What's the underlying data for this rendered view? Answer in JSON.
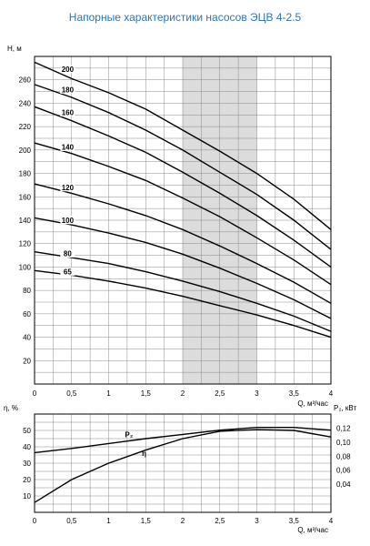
{
  "title": "Напорные характеристики насосов ЭЦВ 4-2.5",
  "chart_data": [
    {
      "type": "line",
      "ylabel": "H, м",
      "xlabel": "Q, м³/час",
      "xlim": [
        0,
        4
      ],
      "ylim": [
        0,
        280
      ],
      "x_ticks": [
        "0",
        "0,5",
        "1",
        "1,5",
        "2",
        "2,5",
        "3",
        "3,5",
        "4"
      ],
      "y_ticks": [
        "20",
        "40",
        "60",
        "80",
        "100",
        "120",
        "140",
        "160",
        "180",
        "200",
        "220",
        "240",
        "260"
      ],
      "grid": true,
      "working_range_q": [
        2,
        3
      ],
      "series": [
        {
          "name": "200",
          "x": [
            0,
            0.5,
            1,
            1.5,
            2,
            2.5,
            3,
            3.5,
            4
          ],
          "y": [
            275,
            261,
            249,
            235,
            217,
            199,
            180,
            158,
            132
          ]
        },
        {
          "name": "180",
          "x": [
            0,
            0.5,
            1,
            1.5,
            2,
            2.5,
            3,
            3.5,
            4
          ],
          "y": [
            256,
            245,
            232,
            217,
            200,
            181,
            162,
            140,
            115
          ]
        },
        {
          "name": "160",
          "x": [
            0,
            0.5,
            1,
            1.5,
            2,
            2.5,
            3,
            3.5,
            4
          ],
          "y": [
            237,
            225,
            212,
            198,
            181,
            163,
            144,
            123,
            100
          ]
        },
        {
          "name": "140",
          "x": [
            0,
            0.5,
            1,
            1.5,
            2,
            2.5,
            3,
            3.5,
            4
          ],
          "y": [
            206,
            197,
            186,
            174,
            159,
            143,
            125,
            106,
            85
          ]
        },
        {
          "name": "120",
          "x": [
            0,
            0.5,
            1,
            1.5,
            2,
            2.5,
            3,
            3.5,
            4
          ],
          "y": [
            171,
            163,
            154,
            144,
            132,
            118,
            103,
            87,
            69
          ]
        },
        {
          "name": "100",
          "x": [
            0,
            0.5,
            1,
            1.5,
            2,
            2.5,
            3,
            3.5,
            4
          ],
          "y": [
            142,
            136,
            129,
            121,
            111,
            99,
            86,
            72,
            56
          ]
        },
        {
          "name": "80",
          "x": [
            0,
            0.5,
            1,
            1.5,
            2,
            2.5,
            3,
            3.5,
            4
          ],
          "y": [
            113,
            108,
            103,
            96,
            88,
            79,
            69,
            58,
            45
          ]
        },
        {
          "name": "65",
          "x": [
            0,
            0.5,
            1,
            1.5,
            2,
            2.5,
            3,
            3.5,
            4
          ],
          "y": [
            97,
            93,
            88,
            82,
            75,
            67,
            59,
            50,
            40
          ]
        }
      ]
    },
    {
      "type": "line",
      "ylabel": "η, %",
      "ylabel2": "P₂, кВт",
      "xlabel": "Q, м³/час",
      "xlim": [
        0,
        4
      ],
      "ylim": [
        0,
        60
      ],
      "ylim2": [
        0,
        0.14
      ],
      "x_ticks": [
        "0",
        "0,5",
        "1",
        "1,5",
        "2",
        "2,5",
        "3",
        "3,5",
        "4"
      ],
      "y_ticks": [
        "10",
        "20",
        "30",
        "40",
        "50"
      ],
      "y2_ticks": [
        "0,04",
        "0,06",
        "0,08",
        "0,10",
        "0,12"
      ],
      "grid": true,
      "series": [
        {
          "name": "η",
          "axis": "left",
          "x": [
            0,
            0.5,
            1,
            1.5,
            2,
            2.5,
            3,
            3.5,
            4
          ],
          "y": [
            6,
            20,
            30,
            38,
            45,
            49.5,
            50.5,
            50,
            46
          ]
        },
        {
          "name": "P₂",
          "axis": "right",
          "x": [
            0,
            0.5,
            1,
            1.5,
            2,
            2.5,
            3,
            3.5,
            4
          ],
          "y": [
            0.085,
            0.091,
            0.098,
            0.105,
            0.111,
            0.117,
            0.121,
            0.121,
            0.117
          ]
        }
      ]
    }
  ]
}
